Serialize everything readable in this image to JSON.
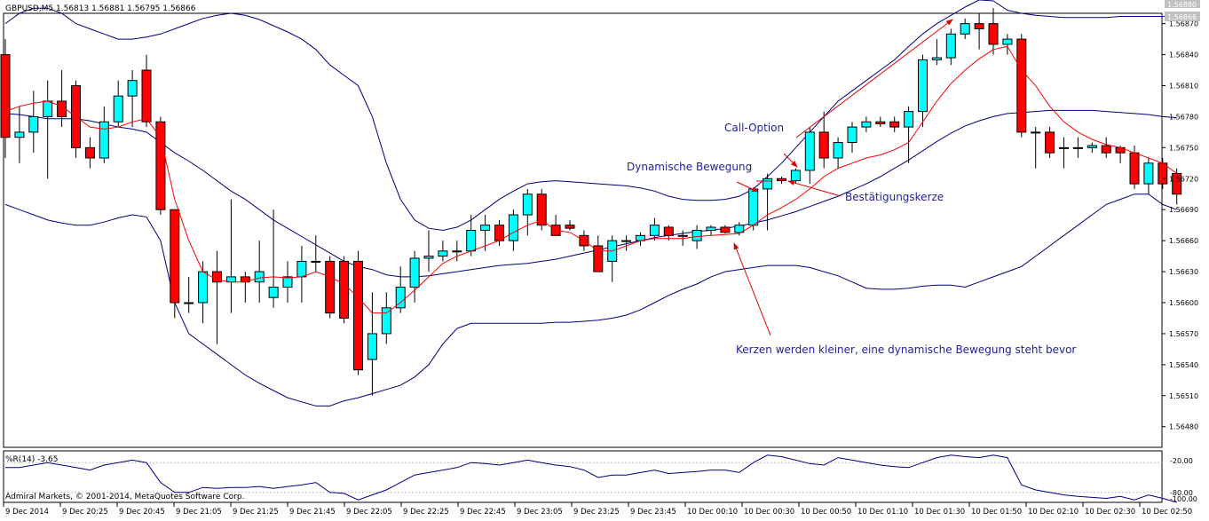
{
  "header": {
    "symbol_info": "GBPUSD,M5  1.56813 1.56881 1.56795 1.56866"
  },
  "indicator": {
    "label": "%R(14) -3.65",
    "levels": [
      "-20.00",
      "-80.00",
      "-100.00"
    ]
  },
  "copyright": "Admiral Markets, © 2001-2014, MetaQuotes Software Corp.",
  "annotations": {
    "call_option": "Call-Option",
    "dynamic_move": "Dynamische Bewegung",
    "confirmation": "Bestätigungskerze",
    "candles_smaller": "Kerzen werden kleiner, eine dynamische Bewegung steht bevor"
  },
  "colors": {
    "bull": "#00ffff",
    "bear": "#ff0000",
    "bands": "#000080",
    "ma": "#ff0000",
    "annotation_text": "#1f1f9f",
    "arrow": "#dd0000",
    "wpr": "#000080",
    "current_price_bg": "#c0c0c0"
  },
  "chart_data": {
    "type": "candlestick",
    "symbol": "GBPUSD",
    "timeframe": "M5",
    "current_price_labels": [
      "1.56880",
      "1.56866"
    ],
    "y_tick_labels": [
      "1.56870",
      "1.56840",
      "1.56810",
      "1.56780",
      "1.56750",
      "1.56720",
      "1.56690",
      "1.56660",
      "1.56630",
      "1.56600",
      "1.56570",
      "1.56540",
      "1.56510",
      "1.56480"
    ],
    "ylim": [
      1.5646,
      1.5688
    ],
    "x_tick_labels": [
      "9 Dec 2014",
      "9 Dec 20:25",
      "9 Dec 20:45",
      "9 Dec 21:05",
      "9 Dec 21:25",
      "9 Dec 21:45",
      "9 Dec 22:05",
      "9 Dec 22:25",
      "9 Dec 22:45",
      "9 Dec 23:05",
      "9 Dec 23:25",
      "9 Dec 23:45",
      "10 Dec 00:10",
      "10 Dec 00:30",
      "10 Dec 00:50",
      "10 Dec 01:10",
      "10 Dec 01:30",
      "10 Dec 01:50",
      "10 Dec 02:10",
      "10 Dec 02:30",
      "10 Dec 02:50"
    ],
    "candles": [
      [
        1.5684,
        1.56855,
        1.5674,
        1.5676
      ],
      [
        1.5676,
        1.5679,
        1.56735,
        1.56765
      ],
      [
        1.56765,
        1.56805,
        1.56745,
        1.5678
      ],
      [
        1.5678,
        1.56815,
        1.5672,
        1.56795
      ],
      [
        1.56795,
        1.56825,
        1.5677,
        1.5678
      ],
      [
        1.5681,
        1.56815,
        1.5674,
        1.5675
      ],
      [
        1.5675,
        1.5676,
        1.5673,
        1.5674
      ],
      [
        1.5674,
        1.5679,
        1.56735,
        1.56775
      ],
      [
        1.56775,
        1.56815,
        1.5677,
        1.568
      ],
      [
        1.568,
        1.56825,
        1.5677,
        1.56815
      ],
      [
        1.56825,
        1.5684,
        1.5677,
        1.56775
      ],
      [
        1.56775,
        1.5678,
        1.56685,
        1.5669
      ],
      [
        1.5669,
        1.5669,
        1.56585,
        1.566
      ],
      [
        1.566,
        1.56625,
        1.5659,
        1.566
      ],
      [
        1.566,
        1.5664,
        1.5658,
        1.5663
      ],
      [
        1.5663,
        1.5665,
        1.5656,
        1.5662
      ],
      [
        1.5662,
        1.567,
        1.5659,
        1.56625
      ],
      [
        1.56625,
        1.5663,
        1.566,
        1.5662
      ],
      [
        1.5662,
        1.5666,
        1.566,
        1.5663
      ],
      [
        1.56605,
        1.5669,
        1.56595,
        1.56615
      ],
      [
        1.56615,
        1.5664,
        1.566,
        1.56625
      ],
      [
        1.56625,
        1.56655,
        1.566,
        1.5664
      ],
      [
        1.5664,
        1.56665,
        1.5663,
        1.5664
      ],
      [
        1.5664,
        1.56645,
        1.56585,
        1.5659
      ],
      [
        1.5664,
        1.56645,
        1.5658,
        1.56585
      ],
      [
        1.5664,
        1.5665,
        1.5653,
        1.56535
      ],
      [
        1.56545,
        1.5661,
        1.5651,
        1.5657
      ],
      [
        1.5657,
        1.5661,
        1.5656,
        1.56595
      ],
      [
        1.56595,
        1.56635,
        1.5659,
        1.56615
      ],
      [
        1.56615,
        1.5665,
        1.566,
        1.56643
      ],
      [
        1.56643,
        1.5667,
        1.5663,
        1.56645
      ],
      [
        1.56645,
        1.5666,
        1.5664,
        1.5665
      ],
      [
        1.5665,
        1.5666,
        1.5664,
        1.5665
      ],
      [
        1.5665,
        1.56685,
        1.56645,
        1.5667
      ],
      [
        1.5667,
        1.56685,
        1.5665,
        1.56675
      ],
      [
        1.56675,
        1.5668,
        1.56655,
        1.5666
      ],
      [
        1.5666,
        1.5669,
        1.5665,
        1.56685
      ],
      [
        1.56685,
        1.5671,
        1.56665,
        1.56705
      ],
      [
        1.56705,
        1.5671,
        1.5667,
        1.56675
      ],
      [
        1.56675,
        1.56685,
        1.56665,
        1.56665
      ],
      [
        1.56675,
        1.5668,
        1.5667,
        1.56672
      ],
      [
        1.56665,
        1.5667,
        1.5665,
        1.56655
      ],
      [
        1.56655,
        1.56665,
        1.5663,
        1.5663
      ],
      [
        1.5664,
        1.56665,
        1.5662,
        1.5666
      ],
      [
        1.5666,
        1.56665,
        1.5665,
        1.5666
      ],
      [
        1.5666,
        1.56668,
        1.56655,
        1.56665
      ],
      [
        1.56665,
        1.56682,
        1.5666,
        1.56675
      ],
      [
        1.56673,
        1.56675,
        1.5666,
        1.56665
      ],
      [
        1.56665,
        1.5667,
        1.56655,
        1.56665
      ],
      [
        1.5666,
        1.56675,
        1.56652,
        1.5667
      ],
      [
        1.5667,
        1.56675,
        1.56665,
        1.56673
      ],
      [
        1.56673,
        1.56675,
        1.56667,
        1.56668
      ],
      [
        1.56668,
        1.56678,
        1.56665,
        1.56675
      ],
      [
        1.56675,
        1.5671,
        1.5667,
        1.5671
      ],
      [
        1.5671,
        1.56725,
        1.5667,
        1.5672
      ],
      [
        1.5672,
        1.56722,
        1.56715,
        1.56718
      ],
      [
        1.56718,
        1.5673,
        1.56715,
        1.56728
      ],
      [
        1.56728,
        1.5677,
        1.56715,
        1.56765
      ],
      [
        1.56765,
        1.56785,
        1.5673,
        1.5674
      ],
      [
        1.5674,
        1.5676,
        1.5673,
        1.56755
      ],
      [
        1.56755,
        1.56775,
        1.56745,
        1.5677
      ],
      [
        1.5677,
        1.5678,
        1.56765,
        1.56775
      ],
      [
        1.56775,
        1.5678,
        1.5677,
        1.56773
      ],
      [
        1.56775,
        1.5678,
        1.56765,
        1.5677
      ],
      [
        1.5677,
        1.5679,
        1.56735,
        1.56785
      ],
      [
        1.56785,
        1.5684,
        1.5677,
        1.56835
      ],
      [
        1.56835,
        1.56855,
        1.5683,
        1.56837
      ],
      [
        1.56837,
        1.56865,
        1.5683,
        1.5686
      ],
      [
        1.5686,
        1.56875,
        1.56855,
        1.5687
      ],
      [
        1.5687,
        1.5688,
        1.56845,
        1.56865
      ],
      [
        1.5687,
        1.56885,
        1.5684,
        1.5685
      ],
      [
        1.5685,
        1.5686,
        1.5684,
        1.56855
      ],
      [
        1.56855,
        1.5686,
        1.5676,
        1.56765
      ],
      [
        1.56765,
        1.5677,
        1.5673,
        1.56765
      ],
      [
        1.56765,
        1.5677,
        1.5674,
        1.56745
      ],
      [
        1.5675,
        1.5676,
        1.5673,
        1.5675
      ],
      [
        1.5675,
        1.5676,
        1.5674,
        1.5675
      ],
      [
        1.5675,
        1.56755,
        1.56745,
        1.56752
      ],
      [
        1.56752,
        1.5676,
        1.5674,
        1.56745
      ],
      [
        1.5675,
        1.56752,
        1.56735,
        1.56745
      ],
      [
        1.56745,
        1.56752,
        1.5671,
        1.56715
      ],
      [
        1.56715,
        1.5674,
        1.56705,
        1.56735
      ],
      [
        1.56735,
        1.5674,
        1.5671,
        1.56715
      ],
      [
        1.56725,
        1.5673,
        1.56695,
        1.56705
      ]
    ],
    "ma": [
      1.56785,
      1.5679,
      1.56793,
      1.56795,
      1.5679,
      1.5678,
      1.5677,
      1.56768,
      1.5677,
      1.56775,
      1.56778,
      1.5676,
      1.567,
      1.5666,
      1.5663,
      1.56622,
      1.5662,
      1.5662,
      1.56624,
      1.56625,
      1.56624,
      1.56625,
      1.5663,
      1.56625,
      1.56618,
      1.56605,
      1.5659,
      1.5659,
      1.566,
      1.56612,
      1.56625,
      1.56638,
      1.56645,
      1.5665,
      1.56655,
      1.5666,
      1.56668,
      1.56675,
      1.5668,
      1.5667,
      1.56668,
      1.5666,
      1.5665,
      1.5665,
      1.56655,
      1.5666,
      1.56662,
      1.56662,
      1.56662,
      1.56664,
      1.56665,
      1.56666,
      1.56667,
      1.56675,
      1.56685,
      1.56692,
      1.567,
      1.5671,
      1.56722,
      1.5673,
      1.56735,
      1.5674,
      1.56743,
      1.56748,
      1.56755,
      1.56775,
      1.56795,
      1.56812,
      1.56825,
      1.56836,
      1.56845,
      1.56848,
      1.56825,
      1.5681,
      1.5679,
      1.56775,
      1.56765,
      1.56758,
      1.56753,
      1.5675,
      1.56745,
      1.5674,
      1.56735,
      1.56725
    ],
    "bb_upper": [
      1.5687,
      1.5688,
      1.56885,
      1.56885,
      1.5688,
      1.5687,
      1.56865,
      1.5686,
      1.56855,
      1.56855,
      1.56857,
      1.5686,
      1.56865,
      1.5687,
      1.56875,
      1.56878,
      1.5688,
      1.56878,
      1.56874,
      1.56868,
      1.56862,
      1.56855,
      1.56845,
      1.5683,
      1.5682,
      1.5681,
      1.5678,
      1.56735,
      1.567,
      1.5668,
      1.56672,
      1.5667,
      1.56673,
      1.5668,
      1.5669,
      1.567,
      1.56708,
      1.56715,
      1.56717,
      1.56718,
      1.56717,
      1.56716,
      1.56715,
      1.56714,
      1.56713,
      1.56711,
      1.56708,
      1.56703,
      1.567,
      1.56699,
      1.56699,
      1.567,
      1.56703,
      1.5671,
      1.56722,
      1.56735,
      1.5675,
      1.56765,
      1.5678,
      1.56795,
      1.56805,
      1.56815,
      1.56825,
      1.56835,
      1.56848,
      1.5686,
      1.5687,
      1.56878,
      1.56886,
      1.56893,
      1.56892,
      1.56883,
      1.5688,
      1.56878,
      1.56877,
      1.56876,
      1.56876,
      1.56876,
      1.56876,
      1.56877,
      1.56877,
      1.56877,
      1.56877,
      1.56878
    ],
    "bb_middle": [
      1.56783,
      1.56782,
      1.5678,
      1.56778,
      1.56778,
      1.56778,
      1.56776,
      1.56773,
      1.5677,
      1.56768,
      1.56765,
      1.56755,
      1.56745,
      1.56737,
      1.56728,
      1.56718,
      1.56708,
      1.567,
      1.5669,
      1.5668,
      1.56672,
      1.56664,
      1.56656,
      1.56648,
      1.5664,
      1.56635,
      1.56632,
      1.56627,
      1.56625,
      1.56625,
      1.56626,
      1.56628,
      1.5663,
      1.56632,
      1.56634,
      1.56636,
      1.56637,
      1.56638,
      1.5664,
      1.56642,
      1.56645,
      1.56648,
      1.56651,
      1.56654,
      1.56657,
      1.5666,
      1.56663,
      1.56665,
      1.56667,
      1.56669,
      1.5667,
      1.56672,
      1.56674,
      1.56677,
      1.5668,
      1.56684,
      1.56688,
      1.56693,
      1.56698,
      1.56703,
      1.56709,
      1.56715,
      1.56722,
      1.5673,
      1.56738,
      1.56747,
      1.56756,
      1.56764,
      1.56771,
      1.56776,
      1.5678,
      1.56783,
      1.56784,
      1.56785,
      1.56786,
      1.56786,
      1.56786,
      1.56786,
      1.56785,
      1.56784,
      1.56783,
      1.56782,
      1.5678,
      1.56779
    ],
    "bb_lower": [
      1.56695,
      1.5669,
      1.56685,
      1.5668,
      1.56677,
      1.56675,
      1.56675,
      1.56678,
      1.56682,
      1.56685,
      1.56683,
      1.5666,
      1.566,
      1.5657,
      1.5656,
      1.5655,
      1.5654,
      1.5653,
      1.56522,
      1.56515,
      1.56508,
      1.56504,
      1.565,
      1.565,
      1.56505,
      1.56508,
      1.56512,
      1.56516,
      1.5652,
      1.56528,
      1.5654,
      1.5656,
      1.56575,
      1.5658,
      1.5658,
      1.5658,
      1.5658,
      1.5658,
      1.5658,
      1.56581,
      1.56581,
      1.56582,
      1.56583,
      1.56585,
      1.56588,
      1.56593,
      1.566,
      1.56607,
      1.56613,
      1.56618,
      1.56625,
      1.5663,
      1.56632,
      1.56634,
      1.56636,
      1.56636,
      1.56636,
      1.56634,
      1.5663,
      1.56626,
      1.5662,
      1.56614,
      1.56613,
      1.56613,
      1.56614,
      1.56616,
      1.56617,
      1.56617,
      1.56615,
      1.5662,
      1.56625,
      1.5663,
      1.56635,
      1.56645,
      1.56655,
      1.56665,
      1.56675,
      1.56685,
      1.56695,
      1.567,
      1.56705,
      1.56705,
      1.56695,
      1.5669
    ],
    "wpr_ylim": [
      -100,
      0
    ],
    "wpr": [
      -30,
      -30,
      -25,
      -20,
      -25,
      -30,
      -35,
      -25,
      -20,
      -15,
      -20,
      -60,
      -80,
      -80,
      -70,
      -72,
      -70,
      -70,
      -68,
      -72,
      -68,
      -65,
      -60,
      -80,
      -82,
      -95,
      -85,
      -75,
      -60,
      -45,
      -40,
      -35,
      -30,
      -20,
      -22,
      -25,
      -20,
      -15,
      -20,
      -25,
      -28,
      -35,
      -50,
      -45,
      -45,
      -40,
      -35,
      -42,
      -40,
      -38,
      -35,
      -35,
      -40,
      -20,
      -5,
      -8,
      -15,
      -22,
      -25,
      -10,
      -15,
      -20,
      -25,
      -28,
      -30,
      -20,
      -10,
      -5,
      -8,
      -10,
      -5,
      -10,
      -65,
      -75,
      -80,
      -85,
      -88,
      -90,
      -92,
      -88,
      -95,
      -85,
      -92,
      -100
    ]
  }
}
